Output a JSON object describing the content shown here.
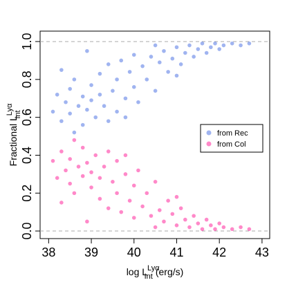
{
  "chart_data": {
    "type": "scatter",
    "x_label": {
      "main": "log L",
      "sub": "Int",
      "sup": "Lyα",
      "unit": "(erg/s)"
    },
    "y_label": {
      "main": "Fractional  L",
      "sub": "Int",
      "sup": "Lyα"
    },
    "xlim": [
      37.8,
      43.18
    ],
    "ylim": [
      -0.04,
      1.055
    ],
    "xticks": [
      38,
      39,
      40,
      41,
      42,
      43
    ],
    "yticks": [
      {
        "value": 0,
        "label": "0.0"
      },
      0.2,
      0.4,
      0.6,
      0.8,
      {
        "value": 1,
        "label": "1.0"
      }
    ],
    "reference_lines": [
      0,
      1
    ],
    "legend": "right",
    "grid": false,
    "series": [
      {
        "name": "from Rec",
        "color": "#4169e1",
        "x": [
          38.1,
          38.2,
          38.3,
          38.4,
          38.5,
          38.5,
          38.6,
          38.7,
          38.8,
          38.8,
          38.9,
          39.0,
          39.0,
          39.1,
          39.2,
          39.2,
          39.3,
          39.4,
          39.4,
          39.5,
          39.6,
          39.6,
          39.7,
          39.8,
          39.9,
          40.0,
          40.0,
          40.1,
          40.2,
          40.3,
          40.4,
          40.5,
          40.6,
          40.7,
          40.8,
          40.9,
          41.0,
          41.1,
          41.2,
          41.3,
          41.4,
          41.5,
          41.6,
          41.7,
          41.8,
          41.9,
          42.0,
          42.1,
          42.3,
          42.5,
          42.7,
          38.3,
          38.6,
          39.8,
          40.5,
          38.9,
          41.0
        ],
        "values": [
          0.63,
          0.72,
          0.58,
          0.68,
          0.75,
          0.62,
          0.8,
          0.66,
          0.71,
          0.56,
          0.64,
          0.77,
          0.69,
          0.6,
          0.83,
          0.72,
          0.66,
          0.88,
          0.58,
          0.74,
          0.8,
          0.63,
          0.9,
          0.7,
          0.84,
          0.76,
          0.93,
          0.68,
          0.87,
          0.8,
          0.92,
          0.74,
          0.89,
          0.95,
          0.84,
          0.91,
          0.97,
          0.88,
          0.94,
          0.98,
          0.92,
          0.96,
          0.99,
          0.94,
          0.97,
          0.99,
          0.96,
          0.98,
          0.99,
          0.98,
          0.99,
          0.85,
          0.52,
          0.6,
          0.98,
          0.95,
          0.82
        ]
      },
      {
        "name": "from Col",
        "color": "#ff1493",
        "x": [
          38.1,
          38.2,
          38.3,
          38.4,
          38.5,
          38.5,
          38.6,
          38.7,
          38.8,
          38.8,
          38.9,
          39.0,
          39.0,
          39.1,
          39.2,
          39.2,
          39.3,
          39.4,
          39.4,
          39.5,
          39.6,
          39.6,
          39.7,
          39.8,
          39.9,
          40.0,
          40.0,
          40.1,
          40.2,
          40.3,
          40.4,
          40.5,
          40.6,
          40.7,
          40.8,
          40.9,
          41.0,
          41.1,
          41.2,
          41.3,
          41.4,
          41.5,
          41.6,
          41.7,
          41.8,
          41.9,
          42.0,
          42.1,
          42.3,
          42.5,
          42.7,
          38.3,
          38.6,
          39.8,
          40.5,
          38.9,
          41.0
        ],
        "values": [
          0.37,
          0.28,
          0.42,
          0.32,
          0.25,
          0.38,
          0.2,
          0.34,
          0.29,
          0.44,
          0.36,
          0.23,
          0.31,
          0.4,
          0.17,
          0.28,
          0.34,
          0.12,
          0.42,
          0.26,
          0.2,
          0.37,
          0.1,
          0.3,
          0.16,
          0.24,
          0.07,
          0.32,
          0.13,
          0.2,
          0.08,
          0.26,
          0.11,
          0.05,
          0.16,
          0.09,
          0.03,
          0.12,
          0.06,
          0.02,
          0.08,
          0.04,
          0.01,
          0.06,
          0.03,
          0.01,
          0.04,
          0.02,
          0.01,
          0.02,
          0.01,
          0.15,
          0.48,
          0.4,
          0.02,
          0.05,
          0.18
        ]
      }
    ]
  }
}
